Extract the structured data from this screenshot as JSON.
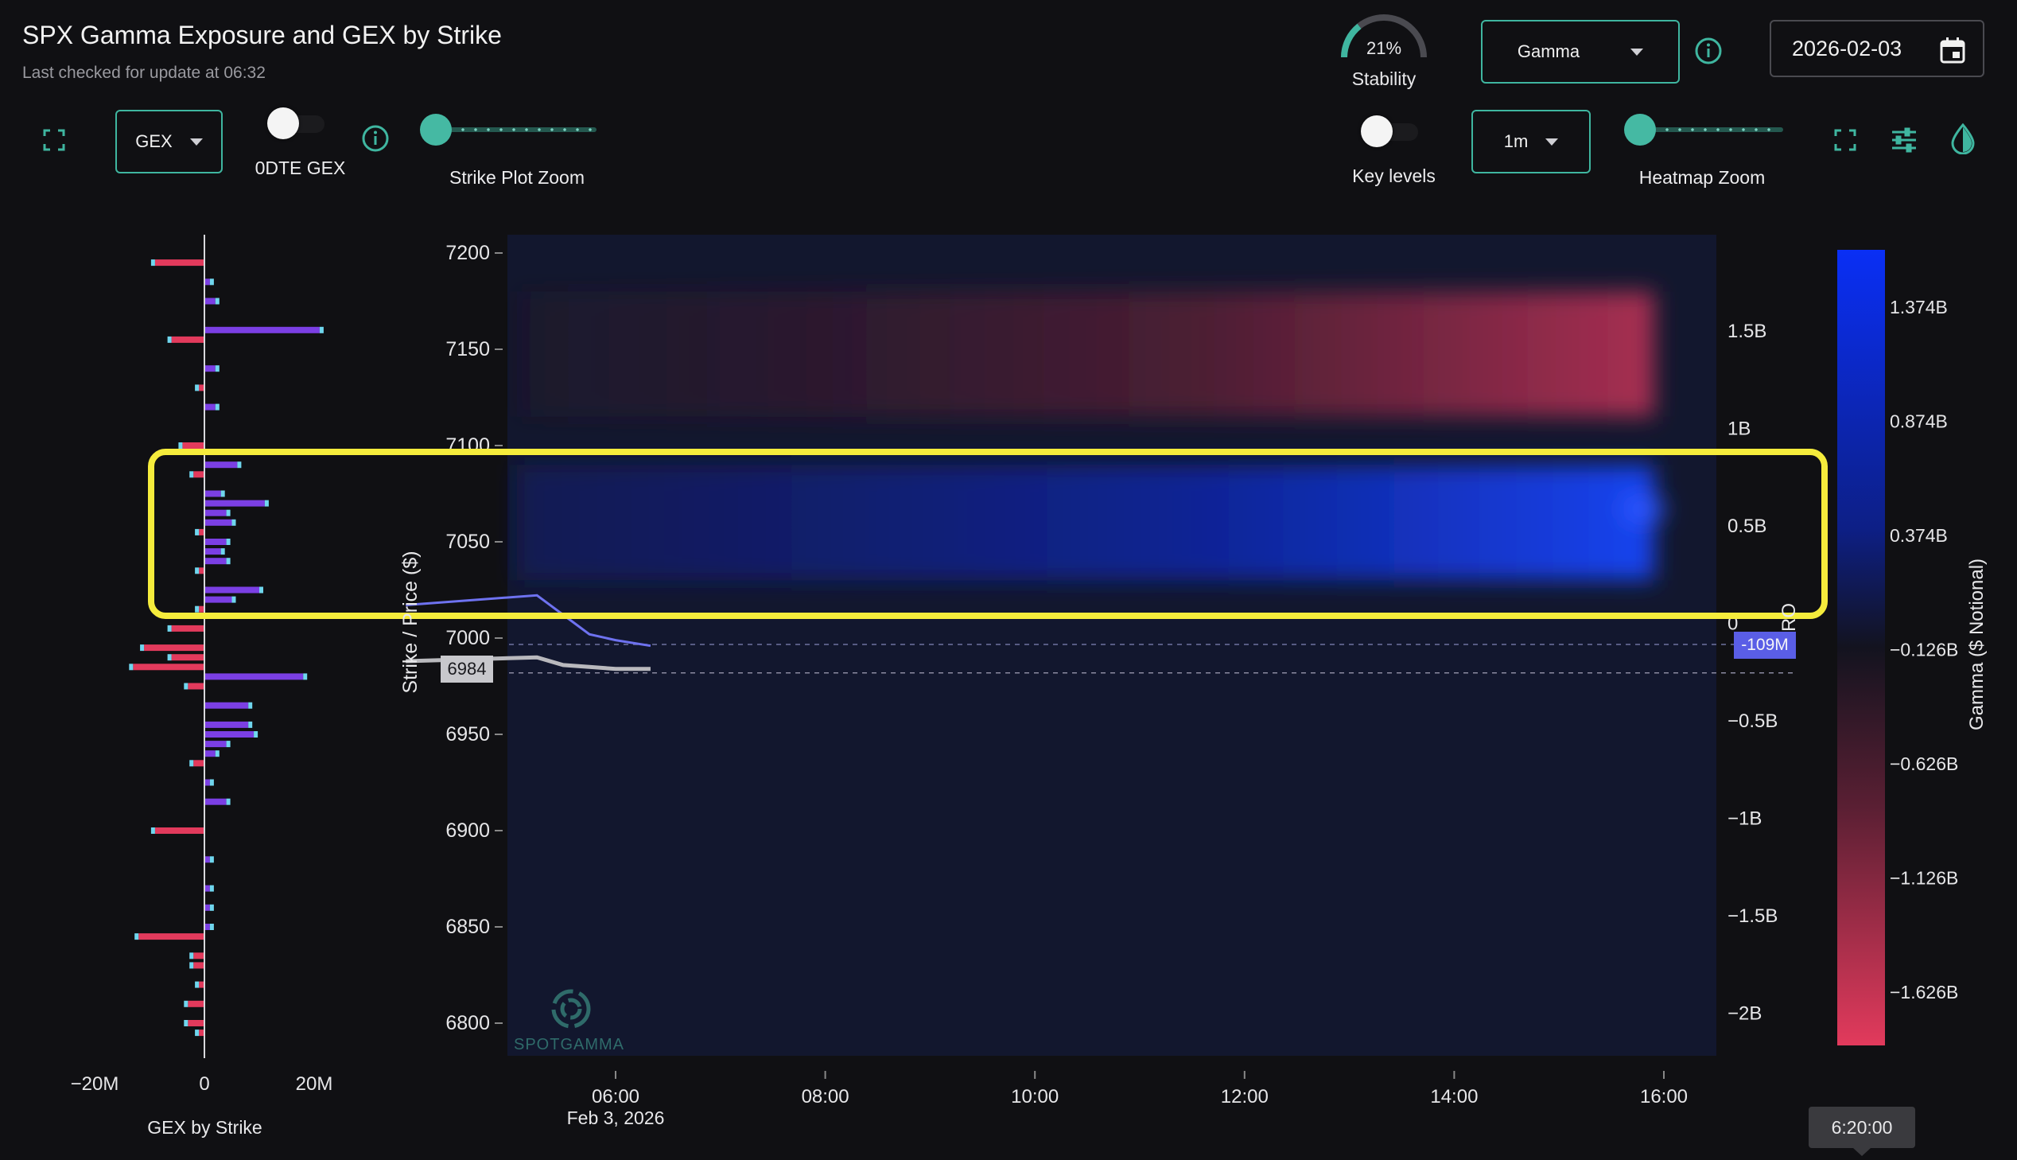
{
  "header": {
    "title": "SPX Gamma Exposure and GEX by Strike",
    "subtitle": "Last checked for update at 06:32"
  },
  "stability": {
    "value_label": "21%",
    "label": "Stability",
    "percent": 21
  },
  "gamma_select": {
    "value": "Gamma"
  },
  "date_input": {
    "value": "2026-02-03"
  },
  "left_controls": {
    "gex_select": "GEX",
    "odte_label": "0DTE GEX",
    "strike_zoom_label": "Strike Plot Zoom",
    "strike_zoom_value": 0
  },
  "right_controls": {
    "key_levels_label": "Key levels",
    "interval_select": "1m",
    "heatmap_zoom_label": "Heatmap Zoom",
    "heatmap_zoom_value": 0
  },
  "gex_by_strike": {
    "title": "GEX by Strike",
    "x_ticks": [
      "−20M",
      "0",
      "20M"
    ]
  },
  "heatmap": {
    "y_axis_label": "Strike / Price ($)",
    "y_ticks": [
      "7200",
      "7150",
      "7100",
      "7050",
      "7000",
      "6950",
      "6900",
      "6850",
      "6800"
    ],
    "x_ticks": [
      "06:00",
      "08:00",
      "10:00",
      "12:00",
      "14:00",
      "16:00"
    ],
    "x_date": "Feb 3, 2026",
    "secondary_ticks": [
      "1.5B",
      "1B",
      "0.5B",
      "0",
      "−0.5B",
      "−1B",
      "−1.5B",
      "−2B"
    ],
    "price_marker": "6984",
    "hiro_marker": "-109M",
    "hiro_axis_label": "HIRO",
    "watermark": "SPOTGAMMA",
    "time_tooltip": "6:20:00"
  },
  "colorbar": {
    "title": "Gamma ($ Notional)",
    "ticks": [
      "1.374B",
      "0.874B",
      "0.374B",
      "−0.126B",
      "−0.626B",
      "−1.126B",
      "−1.626B"
    ]
  },
  "colors": {
    "accent": "#3fb6a0",
    "positive_bar": "#7b3fe4",
    "negative_bar": "#e23a5c",
    "highlight": "#f5ec3c",
    "hiro_line": "#6e72f0",
    "price_line": "#b9b9bd"
  },
  "chart_data": {
    "type": "heatmap",
    "title": "SPX Gamma Exposure and GEX by Strike",
    "xlabel": "",
    "ylabel": "Strike / Price ($)",
    "ylim": [
      6790,
      7210
    ],
    "x_range": [
      "05:00",
      "16:30"
    ],
    "strike_gex": [
      {
        "strike": 7195,
        "value": -9
      },
      {
        "strike": 7185,
        "value": 1
      },
      {
        "strike": 7175,
        "value": 2
      },
      {
        "strike": 7160,
        "value": 21
      },
      {
        "strike": 7155,
        "value": -6
      },
      {
        "strike": 7140,
        "value": 2
      },
      {
        "strike": 7130,
        "value": -1
      },
      {
        "strike": 7120,
        "value": 2
      },
      {
        "strike": 7100,
        "value": -4
      },
      {
        "strike": 7090,
        "value": 6
      },
      {
        "strike": 7085,
        "value": -2
      },
      {
        "strike": 7075,
        "value": 3
      },
      {
        "strike": 7070,
        "value": 11
      },
      {
        "strike": 7065,
        "value": 4
      },
      {
        "strike": 7060,
        "value": 5
      },
      {
        "strike": 7055,
        "value": -1
      },
      {
        "strike": 7050,
        "value": 4
      },
      {
        "strike": 7045,
        "value": 3
      },
      {
        "strike": 7040,
        "value": 4
      },
      {
        "strike": 7035,
        "value": -1
      },
      {
        "strike": 7025,
        "value": 10
      },
      {
        "strike": 7020,
        "value": 5
      },
      {
        "strike": 7015,
        "value": -1
      },
      {
        "strike": 7005,
        "value": -6
      },
      {
        "strike": 6995,
        "value": -11
      },
      {
        "strike": 6990,
        "value": -6
      },
      {
        "strike": 6985,
        "value": -13
      },
      {
        "strike": 6980,
        "value": 18
      },
      {
        "strike": 6975,
        "value": -3
      },
      {
        "strike": 6965,
        "value": 8
      },
      {
        "strike": 6955,
        "value": 8
      },
      {
        "strike": 6950,
        "value": 9
      },
      {
        "strike": 6945,
        "value": 4
      },
      {
        "strike": 6940,
        "value": 2
      },
      {
        "strike": 6935,
        "value": -2
      },
      {
        "strike": 6925,
        "value": 1
      },
      {
        "strike": 6915,
        "value": 4
      },
      {
        "strike": 6900,
        "value": -9
      },
      {
        "strike": 6885,
        "value": 1
      },
      {
        "strike": 6870,
        "value": 1
      },
      {
        "strike": 6860,
        "value": 1
      },
      {
        "strike": 6850,
        "value": 1
      },
      {
        "strike": 6845,
        "value": -12
      },
      {
        "strike": 6835,
        "value": -2
      },
      {
        "strike": 6830,
        "value": -2
      },
      {
        "strike": 6820,
        "value": -1
      },
      {
        "strike": 6810,
        "value": -3
      },
      {
        "strike": 6800,
        "value": -3
      },
      {
        "strike": 6795,
        "value": -1
      }
    ],
    "gamma_bands": [
      {
        "strike_low": 7115,
        "strike_high": 7180,
        "sign": "negative",
        "peak": -1.0
      },
      {
        "strike_low": 7030,
        "strike_high": 7090,
        "sign": "positive",
        "peak": 1.2
      }
    ],
    "price_series": [
      {
        "time": "05:00",
        "value": 6988
      },
      {
        "time": "05:15",
        "value": 6990
      },
      {
        "time": "05:30",
        "value": 6986
      },
      {
        "time": "05:45",
        "value": 6985
      },
      {
        "time": "06:00",
        "value": 6984
      },
      {
        "time": "06:20",
        "value": 6984
      }
    ],
    "hiro_series": [
      {
        "time": "05:00",
        "value": 0.1
      },
      {
        "time": "05:15",
        "value": 0.15
      },
      {
        "time": "05:30",
        "value": 0.05
      },
      {
        "time": "05:45",
        "value": -0.05
      },
      {
        "time": "06:00",
        "value": -0.08
      },
      {
        "time": "06:20",
        "value": -0.109
      }
    ]
  }
}
